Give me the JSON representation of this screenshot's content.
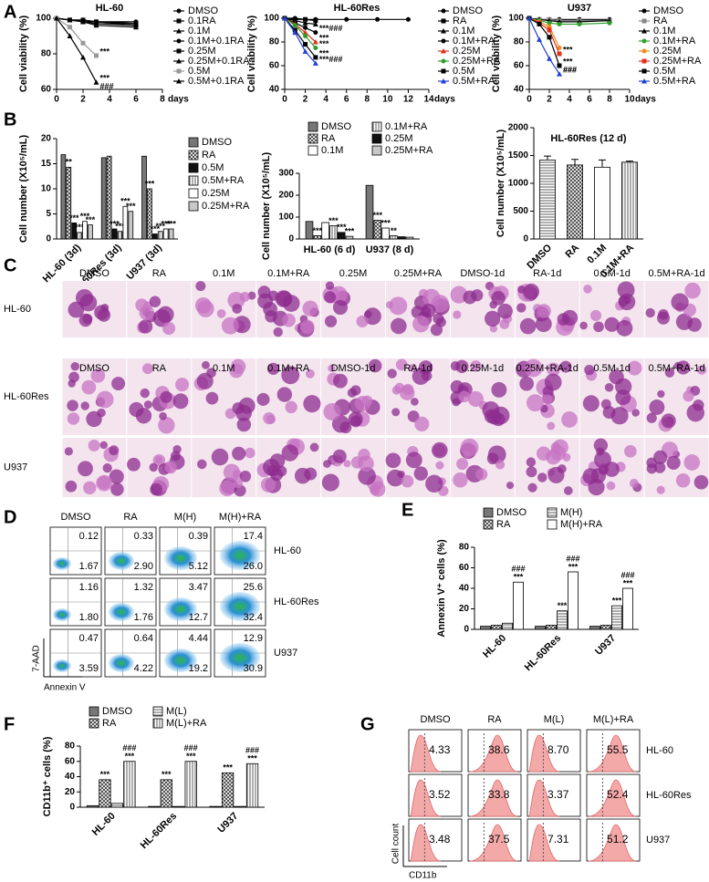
{
  "panel_labels": [
    "A",
    "B",
    "C",
    "D",
    "E",
    "F",
    "G"
  ],
  "chart_data": [
    {
      "type": "line",
      "title": "HL-60",
      "ylabel": "Cell viability (%)",
      "xlabel": "days",
      "x": [
        0,
        1,
        2,
        3,
        6
      ],
      "xlim": [
        0,
        8
      ],
      "xticks": [
        0,
        2,
        4,
        6,
        8
      ],
      "ylim": [
        60,
        100
      ],
      "yticks": [
        60,
        80,
        100
      ],
      "series": [
        {
          "name": "DMSO",
          "color": "#000000",
          "marker": "circle",
          "values": [
            100,
            99,
            99,
            98,
            98
          ]
        },
        {
          "name": "0.1RA",
          "color": "#000000",
          "marker": "square",
          "values": [
            100,
            99,
            99,
            98,
            97
          ]
        },
        {
          "name": "0.1M",
          "color": "#000000",
          "marker": "triangle",
          "values": [
            100,
            99,
            99,
            98,
            97
          ]
        },
        {
          "name": "0.1M+0.1RA",
          "color": "#000000",
          "marker": "circle",
          "values": [
            100,
            99,
            98,
            98,
            96
          ]
        },
        {
          "name": "0.25M",
          "color": "#000000",
          "marker": "square",
          "values": [
            100,
            99,
            98,
            97,
            96
          ]
        },
        {
          "name": "0.25M+0.1RA",
          "color": "#000000",
          "marker": "triangle",
          "values": [
            100,
            99,
            98,
            96,
            95
          ]
        },
        {
          "name": "0.5M",
          "color": "#999999",
          "marker": "square",
          "values": [
            100,
            95,
            86,
            79,
            null
          ],
          "significance": [
            "***"
          ]
        },
        {
          "name": "0.5M+0.1RA",
          "color": "#000000",
          "marker": "triangle",
          "values": [
            100,
            90,
            78,
            64,
            null
          ],
          "significance": [
            "***",
            "###"
          ]
        }
      ]
    },
    {
      "type": "line",
      "title": "HL-60Res",
      "ylabel": "Cell viability (%)",
      "xlabel": "days",
      "x": [
        0,
        1,
        2,
        3,
        6,
        9,
        12
      ],
      "xlim": [
        0,
        14
      ],
      "xticks": [
        0,
        2,
        4,
        6,
        8,
        10,
        12,
        14
      ],
      "ylim": [
        40,
        100
      ],
      "yticks": [
        40,
        60,
        80,
        100
      ],
      "series": [
        {
          "name": "DMSO",
          "color": "#000000",
          "marker": "circle",
          "values": [
            100,
            100,
            99,
            99,
            99,
            99,
            99
          ]
        },
        {
          "name": "RA",
          "color": "#000000",
          "marker": "square",
          "values": [
            100,
            99,
            99,
            98,
            null,
            null,
            null
          ]
        },
        {
          "name": "0.1M",
          "color": "#000000",
          "marker": "triangle",
          "values": [
            100,
            98,
            96,
            95,
            null,
            null,
            null
          ]
        },
        {
          "name": "0.1M+RA",
          "color": "#000000",
          "marker": "circle",
          "values": [
            100,
            96,
            92,
            88,
            null,
            null,
            null
          ],
          "significance": [
            "***###"
          ]
        },
        {
          "name": "0.25M",
          "color": "#e0301e",
          "marker": "triangle",
          "values": [
            100,
            95,
            88,
            80,
            null,
            null,
            null
          ],
          "significance": [
            "***"
          ]
        },
        {
          "name": "0.25M+RA",
          "color": "#2ca02c",
          "marker": "circle",
          "values": [
            100,
            94,
            85,
            75,
            null,
            null,
            null
          ],
          "significance": [
            "***"
          ]
        },
        {
          "name": "0.5M",
          "color": "#000000",
          "marker": "square",
          "values": [
            100,
            90,
            78,
            67,
            null,
            null,
            null
          ],
          "significance": [
            "***"
          ]
        },
        {
          "name": "0.5M+RA",
          "color": "#1f3fd6",
          "marker": "triangle",
          "values": [
            100,
            88,
            72,
            62,
            null,
            null,
            null
          ],
          "significance": [
            "***###"
          ]
        }
      ]
    },
    {
      "type": "line",
      "title": "U937",
      "ylabel": "Cell viability (%)",
      "xlabel": "days",
      "x": [
        0,
        1,
        2,
        3,
        5,
        8
      ],
      "xlim": [
        0,
        10
      ],
      "xticks": [
        0,
        2,
        4,
        6,
        8,
        10
      ],
      "ylim": [
        40,
        100
      ],
      "yticks": [
        40,
        60,
        80,
        100
      ],
      "series": [
        {
          "name": "DMSO",
          "color": "#000000",
          "marker": "circle",
          "values": [
            100,
            99,
            99,
            99,
            99,
            99
          ]
        },
        {
          "name": "RA",
          "color": "#888888",
          "marker": "square",
          "values": [
            100,
            99,
            99,
            98,
            98,
            98
          ]
        },
        {
          "name": "0.1M",
          "color": "#000000",
          "marker": "triangle",
          "values": [
            100,
            99,
            98,
            97,
            97,
            98
          ]
        },
        {
          "name": "0.1M+RA",
          "color": "#2ca02c",
          "marker": "circle",
          "values": [
            100,
            98,
            96,
            95,
            95,
            96
          ]
        },
        {
          "name": "0.25M",
          "color": "#f08a1c",
          "marker": "circle",
          "values": [
            100,
            97,
            93,
            75,
            null,
            null
          ]
        },
        {
          "name": "0.25M+RA",
          "color": "#e0301e",
          "marker": "square",
          "values": [
            100,
            96,
            90,
            70,
            null,
            null
          ],
          "significance": [
            "***"
          ]
        },
        {
          "name": "0.5M",
          "color": "#000000",
          "marker": "square",
          "values": [
            100,
            95,
            84,
            60,
            null,
            null
          ],
          "significance": [
            "***",
            "###"
          ]
        },
        {
          "name": "0.5M+RA",
          "color": "#1f3fd6",
          "marker": "triangle",
          "values": [
            100,
            82,
            66,
            53,
            null,
            null
          ],
          "significance": [
            "###"
          ]
        }
      ]
    },
    {
      "type": "bar",
      "ylabel": "Cell number (X10⁵/mL)",
      "legend": "right",
      "xtick_rotation": 45,
      "categories": [
        "HL-60 (3d)",
        "HL-60Res (3d)",
        "U937 (3d)"
      ],
      "ylim": [
        0,
        20
      ],
      "yticks": [
        0,
        5,
        10,
        15,
        20
      ],
      "series": [
        {
          "name": "DMSO",
          "color": "#777777",
          "values": [
            16.8,
            16.2,
            16.5
          ]
        },
        {
          "name": "RA",
          "color": "#bbbbbb",
          "pattern": "crosshatch",
          "values": [
            14.3,
            16.5,
            10
          ],
          "significance": [
            [
              "**"
            ],
            null,
            [
              "***"
            ]
          ]
        },
        {
          "name": "0.5M",
          "color": "#111111",
          "values": [
            3.2,
            2,
            1
          ],
          "significance": [
            [
              "***"
            ],
            [
              "***"
            ],
            [
              "***"
            ]
          ]
        },
        {
          "name": "0.5M+RA",
          "color": "#ffffff",
          "pattern": "vstripes",
          "values": [
            1.3,
            1.5,
            1.5
          ],
          "significance": [
            [
              "***"
            ],
            [
              "***"
            ],
            [
              "***"
            ]
          ]
        },
        {
          "name": "0.25M",
          "color": "#ffffff",
          "values": [
            3.5,
            6.5,
            2
          ],
          "significance": [
            [
              "***"
            ],
            [
              "***"
            ],
            [
              "***"
            ]
          ]
        },
        {
          "name": "0.25M+RA",
          "color": "#c8c8c8",
          "values": [
            2.8,
            5.5,
            2
          ],
          "significance": [
            [
              "***"
            ],
            [
              "***"
            ],
            [
              "***"
            ]
          ]
        }
      ]
    },
    {
      "type": "bar",
      "ylabel": "Cell number (X10⁵/mL)",
      "legend": "top",
      "xtick_rotation": 0,
      "categories": [
        "HL-60 (6 d)",
        "U937 (8 d)"
      ],
      "ylim": [
        0,
        300
      ],
      "yticks": [
        0,
        100,
        200,
        300
      ],
      "series": [
        {
          "name": "DMSO",
          "color": "#777777",
          "values": [
            80,
            245
          ]
        },
        {
          "name": "RA",
          "color": "#bbbbbb",
          "pattern": "crosshatch",
          "values": [
            15,
            85
          ],
          "significance": [
            [
              "***"
            ],
            [
              "***"
            ]
          ]
        },
        {
          "name": "0.1M",
          "color": "#ffffff",
          "values": [
            75,
            50
          ],
          "significance": [
            null,
            [
              "***"
            ]
          ]
        },
        {
          "name": "0.1M+RA",
          "color": "#ffffff",
          "pattern": "vstripes",
          "values": [
            60,
            15
          ],
          "significance": [
            [
              "***"
            ],
            [
              "**"
            ]
          ]
        },
        {
          "name": "0.25M",
          "color": "#111111",
          "values": [
            30,
            10
          ],
          "significance": [
            [
              "***"
            ],
            null
          ]
        },
        {
          "name": "0.25M+RA",
          "color": "#c8c8c8",
          "values": [
            12,
            8
          ],
          "significance": [
            [
              "***"
            ],
            null
          ]
        }
      ]
    },
    {
      "type": "bar",
      "title": "HL-60Res (12 d)",
      "ylabel": "Cell number (X10⁵/mL)",
      "xtick_rotation": 45,
      "categories": [
        "DMSO",
        "RA",
        "0.1M",
        "0.1M+RA"
      ],
      "ylim": [
        0,
        2000
      ],
      "yticks": [
        0,
        500,
        1000,
        1500,
        2000
      ],
      "values": [
        1420,
        1330,
        1290,
        1380
      ],
      "errors": [
        70,
        100,
        130,
        20
      ],
      "color": "#ffffff",
      "patterns": [
        "hlines",
        "crosshatch",
        null,
        "vstripes"
      ]
    },
    {
      "type": "bar",
      "ylabel": "Annexin V⁺ cells (%)",
      "legend": "top",
      "xtick_rotation": 45,
      "categories": [
        "HL-60",
        "HL-60Res",
        "U937"
      ],
      "ylim": [
        0,
        80
      ],
      "yticks": [
        0,
        20,
        40,
        60,
        80
      ],
      "series": [
        {
          "name": "DMSO",
          "color": "#777777",
          "values": [
            3,
            3,
            3
          ]
        },
        {
          "name": "RA",
          "color": "#bbbbbb",
          "pattern": "crosshatch",
          "values": [
            4,
            4,
            4
          ]
        },
        {
          "name": "M(H)",
          "color": "#dddddd",
          "pattern": "hlines",
          "values": [
            6,
            18,
            23
          ],
          "significance": [
            null,
            [
              "***"
            ],
            [
              "***"
            ]
          ]
        },
        {
          "name": "M(H)+RA",
          "color": "#ffffff",
          "values": [
            46,
            56,
            40
          ],
          "significance": [
            [
              "###",
              "***"
            ],
            [
              "###",
              "***"
            ],
            [
              "###",
              "***"
            ]
          ]
        }
      ]
    },
    {
      "type": "bar",
      "ylabel": "CD11b⁺ cells (%)",
      "legend": "top",
      "xtick_rotation": 45,
      "categories": [
        "HL-60",
        "HL-60Res",
        "U937"
      ],
      "ylim": [
        0,
        80
      ],
      "yticks": [
        0,
        20,
        40,
        60,
        80
      ],
      "series": [
        {
          "name": "DMSO",
          "color": "#777777",
          "values": [
            2,
            1,
            1
          ]
        },
        {
          "name": "RA",
          "color": "#bbbbbb",
          "pattern": "crosshatch",
          "values": [
            36,
            36,
            45
          ],
          "significance": [
            [
              "***"
            ],
            [
              "***"
            ],
            [
              "***"
            ]
          ]
        },
        {
          "name": "M(L)",
          "color": "#dddddd",
          "pattern": "hlines",
          "values": [
            5,
            1,
            1
          ]
        },
        {
          "name": "M(L)+RA",
          "color": "#ffffff",
          "pattern": "vstripes",
          "values": [
            60,
            60,
            57
          ],
          "significance": [
            [
              "###",
              "***"
            ],
            [
              "###",
              "***"
            ],
            [
              "###",
              "***"
            ]
          ]
        }
      ]
    }
  ],
  "micrographs": {
    "rows": [
      {
        "label": "HL-60",
        "columns": [
          "DMSO",
          "RA",
          "0.1M",
          "0.1M+RA",
          "0.25M",
          "0.25M+RA",
          "DMSO-1d",
          "RA-1d",
          "0.5M-1d",
          "0.5M+RA-1d"
        ]
      },
      {
        "label": "HL-60Res",
        "columns": [
          "DMSO",
          "RA",
          "0.1M",
          "0.1M+RA",
          "DMSO-1d",
          "RA-1d",
          "0.25M-1d",
          "0.25M+RA-1d",
          "0.5M-1d",
          "0.5M+RA-1d"
        ]
      },
      {
        "label": "U937"
      }
    ]
  },
  "flow_cytometry": {
    "columns": [
      "DMSO",
      "RA",
      "M(H)",
      "M(H)+RA"
    ],
    "y_label": "7-AAD",
    "x_label": "Annexin V",
    "rows": [
      {
        "label": "HL-60",
        "cells": [
          [
            "0.12",
            "1.67"
          ],
          [
            "0.33",
            "2.90"
          ],
          [
            "0.39",
            "5.12"
          ],
          [
            "17.4",
            "26.0"
          ]
        ]
      },
      {
        "label": "HL-60Res",
        "cells": [
          [
            "1.16",
            "1.80"
          ],
          [
            "1.32",
            "1.76"
          ],
          [
            "3.47",
            "12.7"
          ],
          [
            "25.6",
            "32.4"
          ]
        ]
      },
      {
        "label": "U937",
        "cells": [
          [
            "0.47",
            "3.59"
          ],
          [
            "0.64",
            "4.22"
          ],
          [
            "4.44",
            "19.2"
          ],
          [
            "12.9",
            "30.9"
          ]
        ]
      }
    ]
  },
  "cd11b_histograms": {
    "columns": [
      "DMSO",
      "RA",
      "M(L)",
      "M(L)+RA"
    ],
    "y_label": "Cell count",
    "x_label": "CD11b",
    "rows": [
      {
        "label": "HL-60",
        "cells": [
          "4.33",
          "38.6",
          "8.70",
          "55.5"
        ]
      },
      {
        "label": "HL-60Res",
        "cells": [
          "3.52",
          "33.8",
          "3.37",
          "52.4"
        ]
      },
      {
        "label": "U937",
        "cells": [
          "3.48",
          "37.5",
          "7.31",
          "51.2"
        ]
      }
    ]
  }
}
